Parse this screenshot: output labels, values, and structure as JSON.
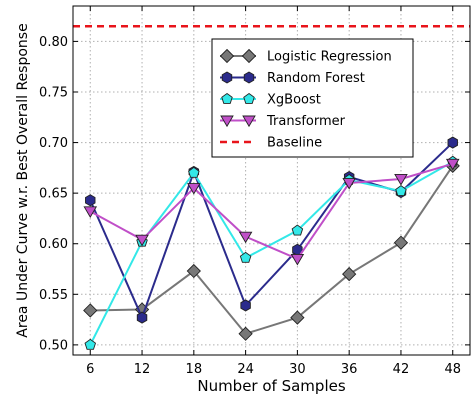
{
  "chart_data": {
    "type": "line",
    "title": "",
    "xlabel": "Number of Samples",
    "ylabel": "Area Under Curve w.r. Best Overall Response",
    "x": [
      6,
      12,
      18,
      24,
      30,
      36,
      42,
      48
    ],
    "x_ticks": [
      "6",
      "12",
      "18",
      "24",
      "30",
      "36",
      "42",
      "48"
    ],
    "xlim": [
      4,
      50
    ],
    "ylim": [
      0.49,
      0.835
    ],
    "y_ticks": [
      "0.50",
      "0.55",
      "0.60",
      "0.65",
      "0.70",
      "0.75",
      "0.80"
    ],
    "grid": true,
    "legend_position": "top-center",
    "series": [
      {
        "name": "Logistic Regression",
        "color": "#777777",
        "marker": "diamond",
        "values": [
          0.534,
          0.535,
          0.573,
          0.511,
          0.527,
          0.57,
          0.601,
          0.677
        ]
      },
      {
        "name": "Random Forest",
        "color": "#2b2b8c",
        "marker": "hexagon",
        "values": [
          0.643,
          0.527,
          0.671,
          0.539,
          0.594,
          0.666,
          0.651,
          0.7
        ]
      },
      {
        "name": "XgBoost",
        "color": "#33e8e8",
        "marker": "pentagon",
        "values": [
          0.5,
          0.602,
          0.67,
          0.586,
          0.613,
          0.663,
          0.652,
          0.681
        ]
      },
      {
        "name": "Transformer",
        "color": "#c04fc8",
        "marker": "triangle-down",
        "values": [
          0.632,
          0.604,
          0.655,
          0.607,
          0.585,
          0.66,
          0.664,
          0.679
        ]
      }
    ],
    "baseline": {
      "name": "Baseline",
      "color": "#e8141b",
      "value": 0.815,
      "style": "dashed"
    }
  }
}
